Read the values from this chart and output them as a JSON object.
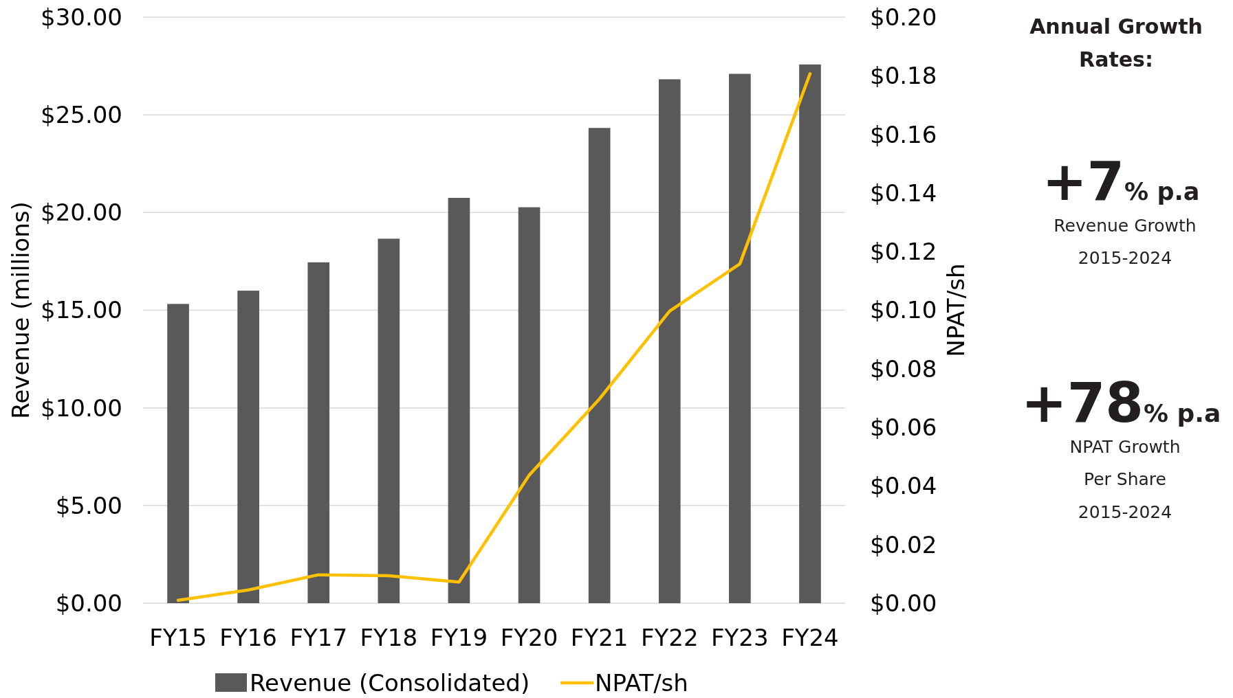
{
  "chart_data": {
    "type": "bar",
    "categories": [
      "FY15",
      "FY16",
      "FY17",
      "FY18",
      "FY19",
      "FY20",
      "FY21",
      "FY22",
      "FY23",
      "FY24"
    ],
    "series": [
      {
        "name": "Revenue (Consolidated)",
        "color": "#595959",
        "values": [
          15.32,
          16.0,
          17.45,
          18.66,
          20.75,
          20.27,
          24.33,
          26.82,
          27.1,
          27.58
        ]
      },
      {
        "name": "NPAT/sh",
        "type": "line",
        "axis": "y2",
        "color": "#ffc000",
        "values": [
          0.001,
          0.0045,
          0.0097,
          0.0094,
          0.0072,
          0.0437,
          0.0697,
          0.0997,
          0.1158,
          0.1807
        ]
      }
    ],
    "ylabel": "Revenue (millions)",
    "y2label": "NPAT/sh",
    "ylim": [
      0,
      30
    ],
    "yticks": [
      {
        "value": 0,
        "label": "$0.00"
      },
      {
        "value": 5,
        "label": "$5.00"
      },
      {
        "value": 10,
        "label": "$10.00"
      },
      {
        "value": 15,
        "label": "$15.00"
      },
      {
        "value": 20,
        "label": "$20.00"
      },
      {
        "value": 25,
        "label": "$25.00"
      },
      {
        "value": 30,
        "label": "$30.00"
      }
    ],
    "y2lim": [
      0,
      0.2
    ],
    "y2ticks": [
      {
        "value": 0,
        "label": "$0.00"
      },
      {
        "value": 0.02,
        "label": "$0.02"
      },
      {
        "value": 0.04,
        "label": "$0.04"
      },
      {
        "value": 0.06,
        "label": "$0.06"
      },
      {
        "value": 0.08,
        "label": "$0.08"
      },
      {
        "value": 0.1,
        "label": "$0.10"
      },
      {
        "value": 0.12,
        "label": "$0.12"
      },
      {
        "value": 0.14,
        "label": "$0.14"
      },
      {
        "value": 0.16,
        "label": "$0.16"
      },
      {
        "value": 0.18,
        "label": "$0.18"
      },
      {
        "value": 0.2,
        "label": "$0.20"
      }
    ],
    "grid": "y",
    "legend": "bottom",
    "marker": "none",
    "line_style": "solid",
    "annotations": [
      "Annual Growth Rates:",
      "+7% p.a",
      "Revenue Growth",
      "2015-2024",
      "+78% p.a",
      "NPAT Growth",
      "Per Share",
      "2015-2024"
    ]
  }
}
